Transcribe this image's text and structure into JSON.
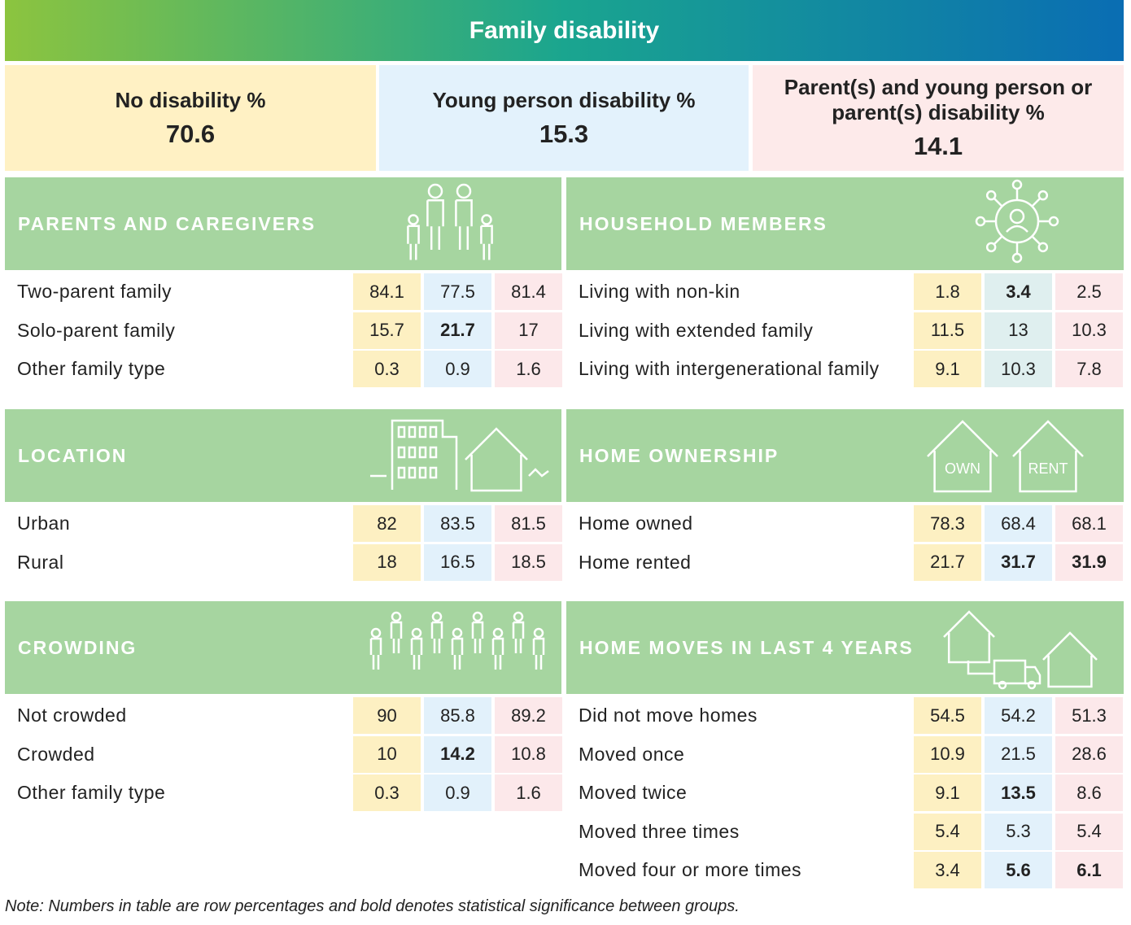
{
  "header": {
    "title": "Family disability"
  },
  "groups": [
    {
      "label": "No disability %",
      "value": "70.6"
    },
    {
      "label": "Young person disability %",
      "value": "15.3"
    },
    {
      "label": "Parent(s) and young person or parent(s) disability %",
      "value": "14.1"
    }
  ],
  "sections": [
    {
      "title": "PARENTS AND CAREGIVERS",
      "rows": [
        {
          "label": "Two-parent family",
          "values": [
            "84.1",
            "77.5",
            "81.4"
          ],
          "bold": [
            false,
            false,
            false
          ]
        },
        {
          "label": "Solo-parent family",
          "values": [
            "15.7",
            "21.7",
            "17"
          ],
          "bold": [
            false,
            true,
            false
          ]
        },
        {
          "label": "Other family type",
          "values": [
            "0.3",
            "0.9",
            "1.6"
          ],
          "bold": [
            false,
            false,
            false
          ]
        }
      ]
    },
    {
      "title": "HOUSEHOLD MEMBERS",
      "rows": [
        {
          "label": "Living with non-kin",
          "values": [
            "1.8",
            "3.4",
            "2.5"
          ],
          "bold": [
            false,
            true,
            false
          ]
        },
        {
          "label": "Living with extended family",
          "values": [
            "11.5",
            "13",
            "10.3"
          ],
          "bold": [
            false,
            false,
            false
          ]
        },
        {
          "label": "Living with intergenerational family",
          "values": [
            "9.1",
            "10.3",
            "7.8"
          ],
          "bold": [
            false,
            false,
            false
          ]
        }
      ]
    },
    {
      "title": "LOCATION",
      "rows": [
        {
          "label": "Urban",
          "values": [
            "82",
            "83.5",
            "81.5"
          ],
          "bold": [
            false,
            false,
            false
          ]
        },
        {
          "label": "Rural",
          "values": [
            "18",
            "16.5",
            "18.5"
          ],
          "bold": [
            false,
            false,
            false
          ]
        }
      ]
    },
    {
      "title": "HOME OWNERSHIP",
      "icon_labels": [
        "OWN",
        "RENT"
      ],
      "rows": [
        {
          "label": "Home owned",
          "values": [
            "78.3",
            "68.4",
            "68.1"
          ],
          "bold": [
            false,
            false,
            false
          ]
        },
        {
          "label": "Home rented",
          "values": [
            "21.7",
            "31.7",
            "31.9"
          ],
          "bold": [
            false,
            true,
            true
          ]
        }
      ]
    },
    {
      "title": "CROWDING",
      "rows": [
        {
          "label": "Not crowded",
          "values": [
            "90",
            "85.8",
            "89.2"
          ],
          "bold": [
            false,
            false,
            false
          ]
        },
        {
          "label": "Crowded",
          "values": [
            "10",
            "14.2",
            "10.8"
          ],
          "bold": [
            false,
            true,
            false
          ]
        },
        {
          "label": "Other family type",
          "values": [
            "0.3",
            "0.9",
            "1.6"
          ],
          "bold": [
            false,
            false,
            false
          ]
        }
      ]
    },
    {
      "title": "HOME MOVES IN LAST 4 YEARS",
      "rows": [
        {
          "label": "Did not move homes",
          "values": [
            "54.5",
            "54.2",
            "51.3"
          ],
          "bold": [
            false,
            false,
            false
          ]
        },
        {
          "label": "Moved once",
          "values": [
            "10.9",
            "21.5",
            "28.6"
          ],
          "bold": [
            false,
            false,
            false
          ]
        },
        {
          "label": "Moved twice",
          "values": [
            "9.1",
            "13.5",
            "8.6"
          ],
          "bold": [
            false,
            true,
            false
          ]
        },
        {
          "label": "Moved three times",
          "values": [
            "5.4",
            "5.3",
            "5.4"
          ],
          "bold": [
            false,
            false,
            false
          ]
        },
        {
          "label": "Moved four or more times",
          "values": [
            "3.4",
            "5.6",
            "6.1"
          ],
          "bold": [
            false,
            true,
            true
          ]
        }
      ]
    }
  ],
  "note": "Note: Numbers in table are row percentages and bold denotes statistical significance between groups."
}
